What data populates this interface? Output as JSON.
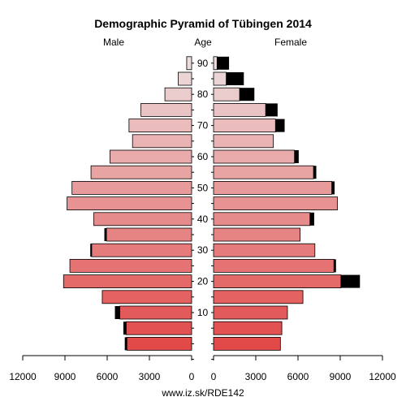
{
  "chart_data": {
    "type": "bar",
    "title": "Demographic Pyramid of Tübingen 2014",
    "footer": "www.iz.sk/RDE142",
    "headers": {
      "male": "Male",
      "age": "Age",
      "female": "Female"
    },
    "age_groups": [
      "0-4",
      "5-9",
      "10-14",
      "15-19",
      "20-24",
      "25-29",
      "30-34",
      "35-39",
      "40-44",
      "45-49",
      "50-54",
      "55-59",
      "60-64",
      "65-69",
      "70-74",
      "75-79",
      "80-84",
      "85-89",
      "90+"
    ],
    "age_ticks": [
      10,
      20,
      30,
      40,
      50,
      60,
      70,
      80,
      90
    ],
    "x_ticks": {
      "left": [
        "12000",
        "9000",
        "6000",
        "3000",
        "0"
      ],
      "right": [
        "0",
        "3000",
        "6000",
        "9000",
        "12000"
      ]
    },
    "xlim": [
      0,
      12000
    ],
    "male": {
      "total": [
        4750,
        4850,
        5450,
        6350,
        9100,
        8650,
        7200,
        6200,
        6950,
        8850,
        8500,
        7150,
        5800,
        4200,
        4450,
        3600,
        1900,
        950,
        350
      ],
      "foreign": [
        150,
        200,
        350,
        0,
        0,
        0,
        100,
        150,
        0,
        0,
        0,
        0,
        0,
        0,
        0,
        0,
        0,
        0,
        0
      ]
    },
    "female": {
      "total": [
        4750,
        4850,
        5250,
        6350,
        10400,
        8700,
        7200,
        6150,
        7150,
        8800,
        8600,
        7300,
        6050,
        4250,
        5050,
        4550,
        2900,
        2150,
        1100
      ],
      "foreign": [
        0,
        0,
        0,
        0,
        1350,
        150,
        0,
        0,
        300,
        0,
        200,
        200,
        300,
        0,
        650,
        850,
        1050,
        1250,
        850
      ]
    }
  }
}
